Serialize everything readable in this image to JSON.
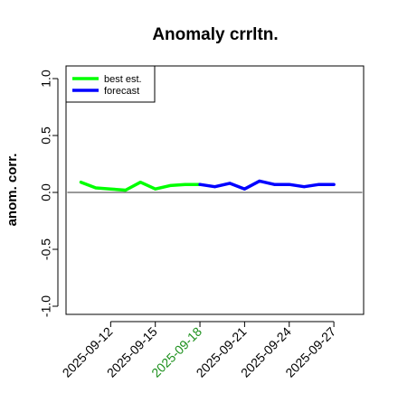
{
  "chart_data": {
    "type": "line",
    "title": "Anomaly crrltn.",
    "xlabel": "",
    "ylabel": "anom. corr.",
    "ylim": [
      -1.0,
      1.0
    ],
    "yticks": [
      "-1.0",
      "-0.5",
      "0.0",
      "0.5",
      "1.0"
    ],
    "ytick_values": [
      -1.0,
      -0.5,
      0.0,
      0.5,
      1.0
    ],
    "xlim": [
      "2025-09-09",
      "2025-09-29"
    ],
    "xticks": [
      "2025-09-12",
      "2025-09-15",
      "2025-09-18",
      "2025-09-21",
      "2025-09-24",
      "2025-09-27"
    ],
    "highlighted_xtick": "2025-09-18",
    "highlight_color": "#1b8f1b",
    "reference_line": 0.0,
    "legend_position": "top-left",
    "grid": false,
    "series": [
      {
        "name": "best est.",
        "color": "#00ff00",
        "x": [
          "2025-09-10",
          "2025-09-11",
          "2025-09-12",
          "2025-09-13",
          "2025-09-14",
          "2025-09-15",
          "2025-09-16",
          "2025-09-17",
          "2025-09-18"
        ],
        "values": [
          0.09,
          0.04,
          0.03,
          0.02,
          0.09,
          0.03,
          0.06,
          0.07,
          0.07
        ]
      },
      {
        "name": "forecast",
        "color": "#0000ff",
        "x": [
          "2025-09-18",
          "2025-09-19",
          "2025-09-20",
          "2025-09-21",
          "2025-09-22",
          "2025-09-23",
          "2025-09-24",
          "2025-09-25",
          "2025-09-26",
          "2025-09-27"
        ],
        "values": [
          0.07,
          0.05,
          0.08,
          0.03,
          0.1,
          0.07,
          0.07,
          0.05,
          0.07,
          0.07
        ]
      }
    ]
  }
}
